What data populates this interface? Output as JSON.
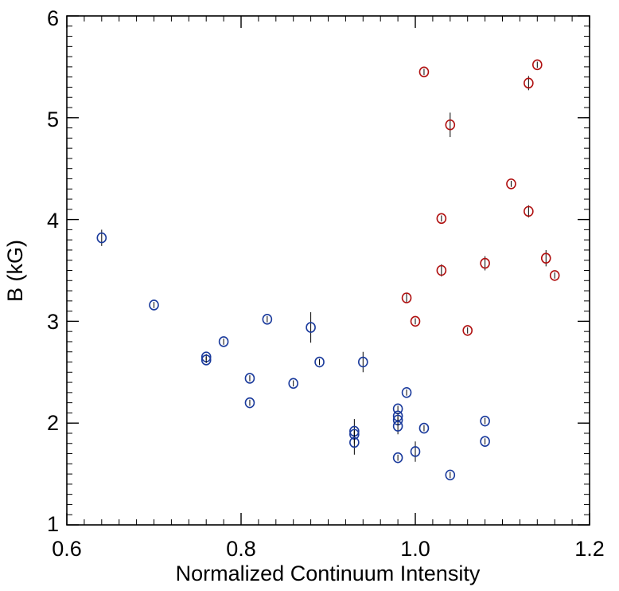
{
  "chart_data": {
    "type": "scatter",
    "title": "",
    "xlabel": "Normalized Continuum Intensity",
    "ylabel": "B (kG)",
    "xlim": [
      0.6,
      1.2
    ],
    "ylim": [
      1,
      6
    ],
    "x_ticks": [
      0.6,
      0.8,
      1.0,
      1.2
    ],
    "x_tick_labels": [
      "0.6",
      "0.8",
      "1.0",
      "1.2"
    ],
    "y_ticks": [
      1,
      2,
      3,
      4,
      5,
      6
    ],
    "y_tick_labels": [
      "1",
      "2",
      "3",
      "4",
      "5",
      "6"
    ],
    "grid": false,
    "series": [
      {
        "color": "#1a3a9c",
        "marker": "open-circle",
        "points": [
          {
            "x": 0.64,
            "y": 3.82,
            "err": 0.08
          },
          {
            "x": 0.7,
            "y": 3.16,
            "err": 0.03
          },
          {
            "x": 0.76,
            "y": 2.65,
            "err": 0.03
          },
          {
            "x": 0.76,
            "y": 2.62,
            "err": 0.03
          },
          {
            "x": 0.78,
            "y": 2.8,
            "err": 0.03
          },
          {
            "x": 0.81,
            "y": 2.44,
            "err": 0.03
          },
          {
            "x": 0.81,
            "y": 2.2,
            "err": 0.03
          },
          {
            "x": 0.83,
            "y": 3.02,
            "err": 0.03
          },
          {
            "x": 0.86,
            "y": 2.39,
            "err": 0.03
          },
          {
            "x": 0.88,
            "y": 2.94,
            "err": 0.15
          },
          {
            "x": 0.89,
            "y": 2.6,
            "err": 0.03
          },
          {
            "x": 0.93,
            "y": 1.92,
            "err": 0.12
          },
          {
            "x": 0.93,
            "y": 1.89,
            "err": 0.03
          },
          {
            "x": 0.93,
            "y": 1.81,
            "err": 0.12
          },
          {
            "x": 0.94,
            "y": 2.6,
            "err": 0.1
          },
          {
            "x": 0.98,
            "y": 2.14,
            "err": 0.03
          },
          {
            "x": 0.98,
            "y": 2.07,
            "err": 0.03
          },
          {
            "x": 0.98,
            "y": 2.03,
            "err": 0.03
          },
          {
            "x": 0.98,
            "y": 1.97,
            "err": 0.08
          },
          {
            "x": 0.98,
            "y": 1.66,
            "err": 0.03
          },
          {
            "x": 0.99,
            "y": 2.3,
            "err": 0.03
          },
          {
            "x": 1.0,
            "y": 1.72,
            "err": 0.1
          },
          {
            "x": 1.01,
            "y": 1.95,
            "err": 0.03
          },
          {
            "x": 1.04,
            "y": 1.49,
            "err": 0.03
          },
          {
            "x": 1.08,
            "y": 2.02,
            "err": 0.03
          },
          {
            "x": 1.08,
            "y": 1.82,
            "err": 0.03
          }
        ]
      },
      {
        "color": "#b01010",
        "marker": "open-circle",
        "points": [
          {
            "x": 0.99,
            "y": 3.23,
            "err": 0.05
          },
          {
            "x": 1.0,
            "y": 3.0,
            "err": 0.03
          },
          {
            "x": 1.01,
            "y": 5.45,
            "err": 0.03
          },
          {
            "x": 1.03,
            "y": 4.01,
            "err": 0.03
          },
          {
            "x": 1.03,
            "y": 3.5,
            "err": 0.06
          },
          {
            "x": 1.04,
            "y": 4.93,
            "err": 0.12
          },
          {
            "x": 1.06,
            "y": 2.91,
            "err": 0.03
          },
          {
            "x": 1.08,
            "y": 3.57,
            "err": 0.07
          },
          {
            "x": 1.11,
            "y": 4.35,
            "err": 0.03
          },
          {
            "x": 1.13,
            "y": 5.34,
            "err": 0.07
          },
          {
            "x": 1.13,
            "y": 4.08,
            "err": 0.06
          },
          {
            "x": 1.14,
            "y": 5.52,
            "err": 0.03
          },
          {
            "x": 1.15,
            "y": 3.62,
            "err": 0.08
          },
          {
            "x": 1.16,
            "y": 3.45,
            "err": 0.03
          }
        ]
      }
    ]
  }
}
